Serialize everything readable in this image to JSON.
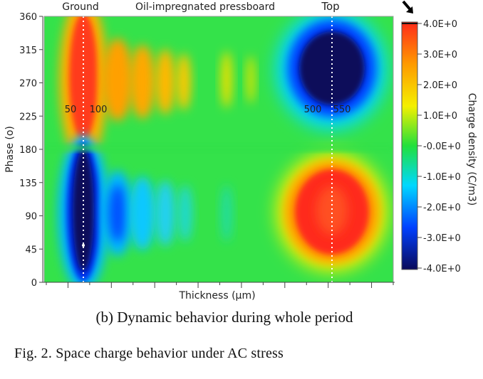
{
  "chart_data": {
    "type": "heatmap",
    "top_labels": {
      "left": "Ground",
      "center": "Oil-impregnated pressboard",
      "right": "Top"
    },
    "xlabel": "Thickness (μm)",
    "ylabel": "Phase (o)",
    "x_tick_count": 17,
    "ylim": [
      0,
      360
    ],
    "y_ticks": [
      0,
      45,
      90,
      135,
      180,
      225,
      270,
      315,
      360
    ],
    "annotations": [
      "50",
      "100",
      "500",
      "550"
    ],
    "colorbar": {
      "label": "Charge density (C/m3)",
      "range": [
        -4.0,
        4.0
      ],
      "ticks": [
        "-4.0E+0",
        "-3.0E+0",
        "-2.0E+0",
        "-1.0E+0",
        "-0.0E+0",
        "1.0E+0",
        "2.0E+0",
        "3.0E+0",
        "4.0E+0"
      ],
      "colors": [
        "#0a0a5a",
        "#0040ff",
        "#00d8ff",
        "#22e03c",
        "#f4f000",
        "#ff9a00",
        "#ff2a1a"
      ]
    },
    "description_regions": [
      {
        "electrode": "Ground",
        "phase_range": [
          0,
          180
        ],
        "charge": -4.0
      },
      {
        "electrode": "Ground",
        "phase_range": [
          180,
          360
        ],
        "charge": 3.5
      },
      {
        "electrode": "Top",
        "phase_range": [
          0,
          180
        ],
        "charge": 3.0
      },
      {
        "electrode": "Top",
        "phase_range": [
          180,
          360
        ],
        "charge": -4.0
      }
    ]
  },
  "captions": {
    "sub": "(b) Dynamic behavior during whole period",
    "figure": "Fig. 2. Space charge behavior under AC stress"
  }
}
